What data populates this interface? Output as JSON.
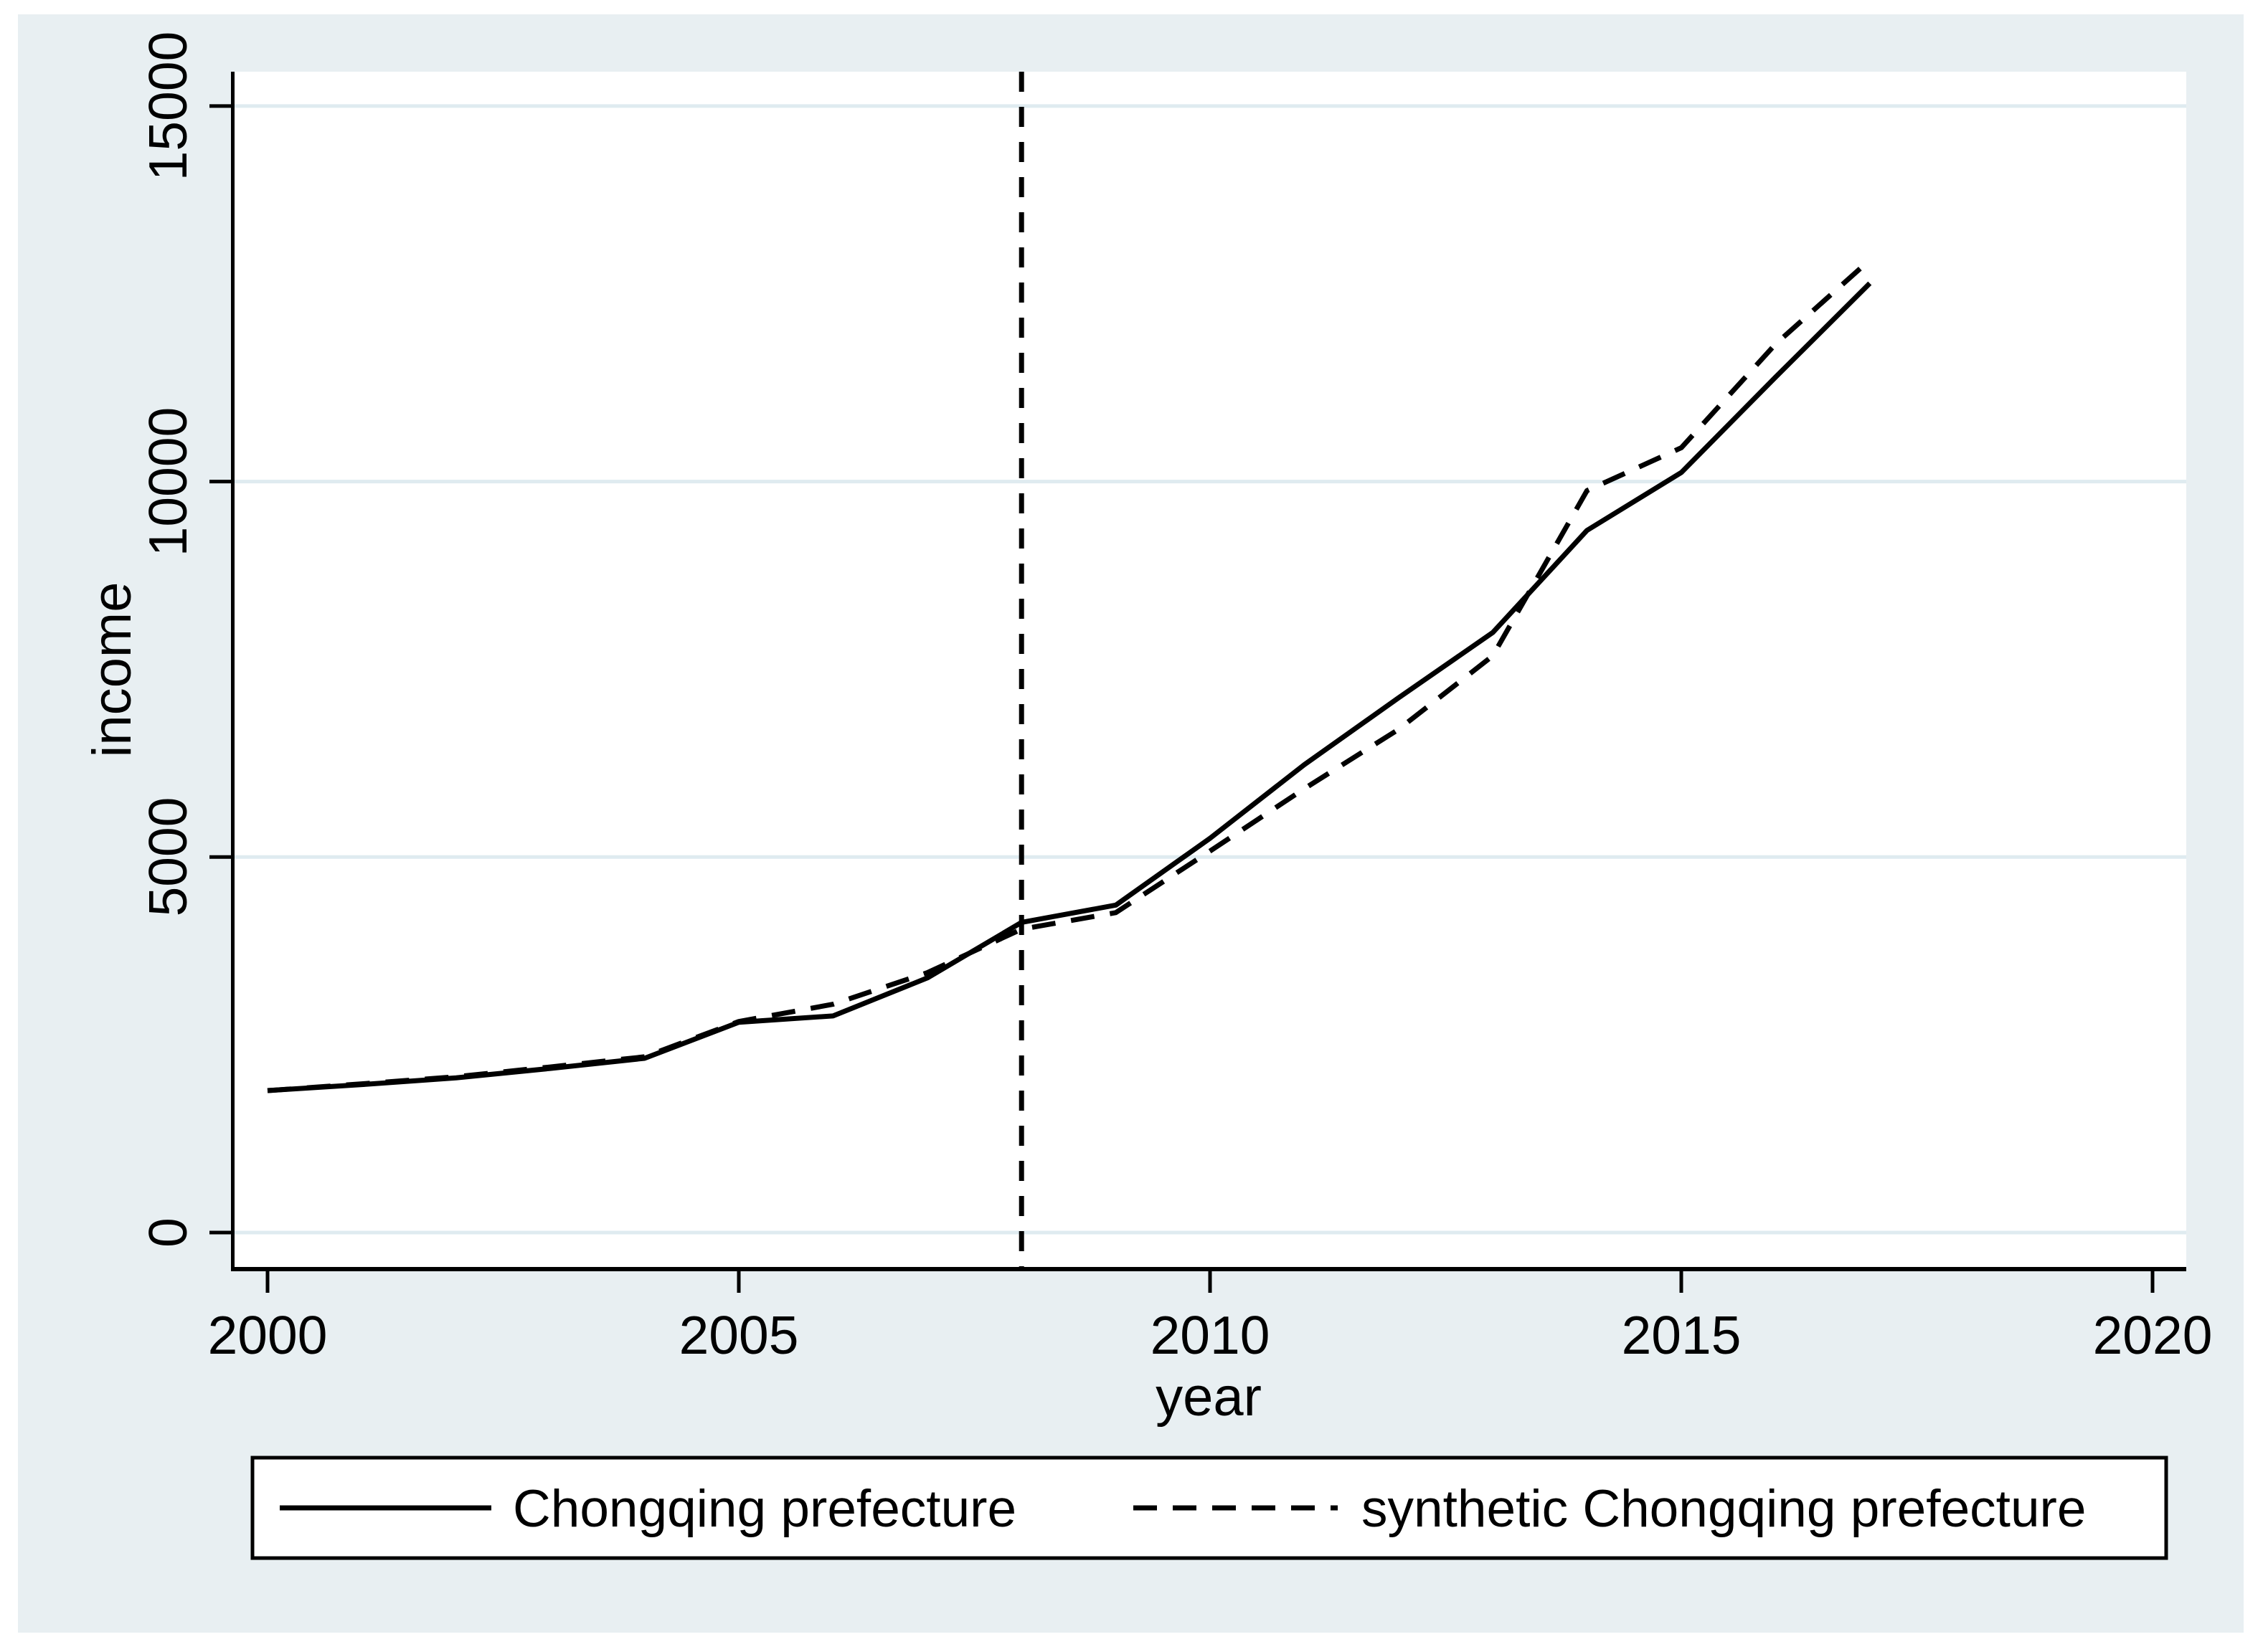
{
  "figure": {
    "background_color": "#e8eff2",
    "plot_background_color": "#ffffff",
    "gridline_color": "#dfebf0",
    "line_color": "#000000"
  },
  "axes": {
    "x": {
      "title": "year",
      "tick_labels": [
        "2000",
        "2005",
        "2010",
        "2015",
        "2020"
      ],
      "tick_values": [
        2000,
        2005,
        2010,
        2015,
        2020
      ]
    },
    "y": {
      "title": "income",
      "tick_labels": [
        "0",
        "5000",
        "10000",
        "15000"
      ],
      "tick_values": [
        0,
        5000,
        10000,
        15000
      ]
    }
  },
  "legend": {
    "items": [
      {
        "label": "Chongqing prefecture",
        "style": "solid"
      },
      {
        "label": "synthetic Chongqing prefecture",
        "style": "dashed"
      }
    ]
  },
  "chart_data": {
    "type": "line",
    "title": "",
    "xlabel": "year",
    "ylabel": "income",
    "xlim": [
      1999.6,
      2020.4
    ],
    "ylim": [
      0,
      15460
    ],
    "grid": "horizontal-gridlines",
    "legend_position": "bottom",
    "treatment_year": 2008,
    "x": [
      2000,
      2001,
      2002,
      2003,
      2004,
      2005,
      2006,
      2007,
      2008,
      2009,
      2010,
      2011,
      2012,
      2013,
      2014,
      2015,
      2016,
      2017
    ],
    "series": [
      {
        "name": "Chongqing prefecture",
        "style": "solid",
        "values": [
          1890,
          1970,
          2060,
          2185,
          2320,
          2800,
          2885,
          3390,
          4130,
          4360,
          5250,
          6230,
          7120,
          7990,
          9350,
          10120,
          11390,
          12640
        ]
      },
      {
        "name": "synthetic Chongqing prefecture",
        "style": "dashed",
        "values": [
          1890,
          1980,
          2075,
          2205,
          2340,
          2810,
          3040,
          3460,
          4040,
          4260,
          5080,
          5910,
          6700,
          7680,
          9880,
          10450,
          11830,
          12950
        ]
      }
    ]
  }
}
